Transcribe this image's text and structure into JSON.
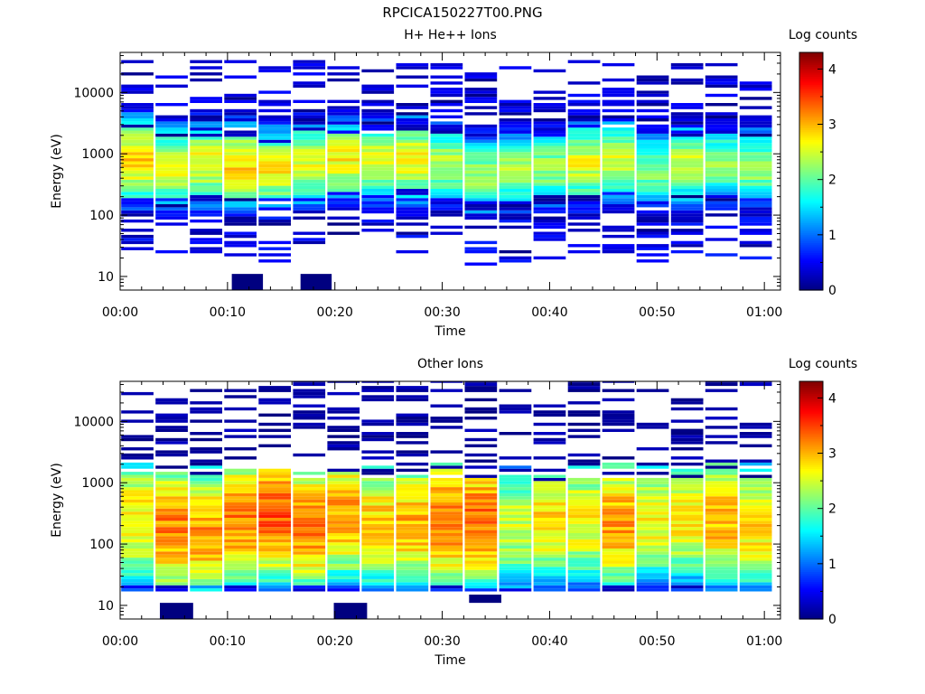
{
  "figure_title": "RPCICA150227T00.PNG",
  "chart_data": [
    {
      "type": "heatmap",
      "title": "H+ He++ Ions",
      "xlabel": "Time",
      "ylabel": "Energy (eV)",
      "colorbar_label": "Log counts",
      "x_ticks": [
        "00:00",
        "00:10",
        "00:20",
        "00:30",
        "00:40",
        "00:50",
        "01:00"
      ],
      "y_ticks": [
        "10",
        "100",
        "1000",
        "10000"
      ],
      "colorbar_ticks": [
        "0",
        "1",
        "2",
        "3",
        "4"
      ],
      "x_range_min": [
        0,
        61.5
      ],
      "y_range_ev": [
        6,
        45000
      ],
      "scale_y": "log",
      "colorbar_range": [
        0,
        4.3
      ],
      "colormap": "jet",
      "time_bins_min": [
        0,
        3.2,
        6.4,
        9.6,
        12.8,
        16,
        19.2,
        22.4,
        25.6,
        28.8,
        32,
        35.2,
        38.4,
        41.6,
        44.8,
        48,
        51.2,
        54.4,
        57.6
      ],
      "bin_width_min": 3.2,
      "peak_energy_ev": [
        800,
        600,
        700,
        650,
        550,
        700,
        800,
        750,
        800,
        650,
        450,
        550,
        600,
        700,
        800,
        550,
        700,
        700,
        600
      ],
      "peak_log_counts": [
        2.9,
        2.6,
        2.7,
        2.9,
        2.7,
        2.6,
        2.7,
        2.6,
        2.7,
        2.4,
        2.3,
        2.3,
        2.3,
        2.6,
        2.5,
        2.2,
        2.5,
        2.2,
        2.3
      ],
      "low_count_pixels": [
        {
          "t_min": 10.4,
          "t_max": 13.3,
          "e_min": 6,
          "e_max": 11,
          "log_counts": 0
        },
        {
          "t_min": 16.8,
          "t_max": 19.7,
          "e_min": 6,
          "e_max": 11,
          "log_counts": 0
        }
      ]
    },
    {
      "type": "heatmap",
      "title": "Other Ions",
      "xlabel": "Time",
      "ylabel": "Energy (eV)",
      "colorbar_label": "Log counts",
      "x_ticks": [
        "00:00",
        "00:10",
        "00:20",
        "00:30",
        "00:40",
        "00:50",
        "01:00"
      ],
      "y_ticks": [
        "10",
        "100",
        "1000",
        "10000"
      ],
      "colorbar_ticks": [
        "0",
        "1",
        "2",
        "3",
        "4"
      ],
      "x_range_min": [
        0,
        61.5
      ],
      "y_range_ev": [
        6,
        45000
      ],
      "scale_y": "log",
      "colorbar_range": [
        0,
        4.3
      ],
      "colormap": "jet",
      "time_bins_min": [
        0,
        3.2,
        6.4,
        9.6,
        12.8,
        16,
        19.2,
        22.4,
        25.6,
        28.8,
        32,
        35.2,
        38.4,
        41.6,
        44.8,
        48,
        51.2,
        54.4,
        57.6
      ],
      "bin_width_min": 3.2,
      "peak_energy_ev": [
        250,
        180,
        150,
        250,
        300,
        200,
        300,
        220,
        220,
        250,
        250,
        200,
        250,
        250,
        220,
        250,
        250,
        250,
        200
      ],
      "peak_log_counts": [
        2.8,
        3.2,
        3.1,
        3.2,
        3.4,
        3.2,
        3.1,
        2.9,
        3.0,
        3.3,
        3.3,
        2.5,
        2.8,
        2.7,
        3.1,
        2.7,
        2.7,
        3.0,
        2.8
      ],
      "low_count_pixels": [
        {
          "t_min": 3.7,
          "t_max": 6.8,
          "e_min": 6,
          "e_max": 11,
          "log_counts": 0
        },
        {
          "t_min": 19.9,
          "t_max": 23,
          "e_min": 6,
          "e_max": 11,
          "log_counts": 0
        },
        {
          "t_min": 32.5,
          "t_max": 35.5,
          "e_min": 11,
          "e_max": 15,
          "log_counts": 0
        }
      ]
    }
  ]
}
